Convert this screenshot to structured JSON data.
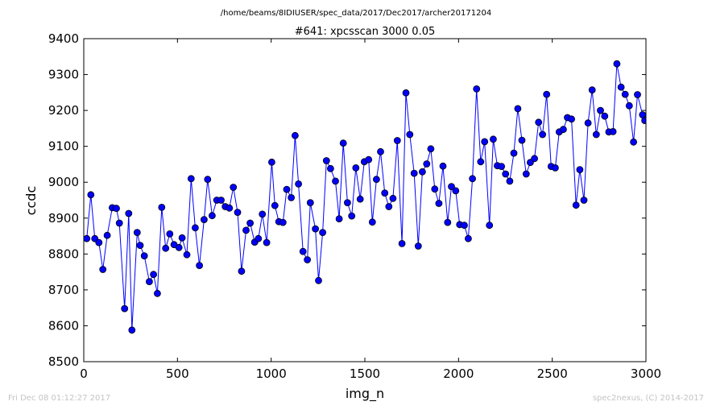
{
  "chart_data": {
    "type": "line",
    "suptitle": "/home/beams/8IDIUSER/spec_data/2017/Dec2017/archer20171204",
    "title": "#641: xpcsscan 3000 0.05",
    "xlabel": "img_n",
    "ylabel": "ccdc",
    "xlim": [
      0,
      3000
    ],
    "ylim": [
      8500,
      9400
    ],
    "xticks": [
      "0",
      "500",
      "1000",
      "1500",
      "2000",
      "2500",
      "3000"
    ],
    "yticks": [
      "8500",
      "8600",
      "8700",
      "8800",
      "8900",
      "9000",
      "9100",
      "9200",
      "9300",
      "9400"
    ],
    "grid": false,
    "series": [
      {
        "color": "#0000ff",
        "marker": "circle",
        "points": [
          [
            16,
            8843
          ],
          [
            38,
            8965
          ],
          [
            59,
            8843
          ],
          [
            81,
            8832
          ],
          [
            102,
            8757
          ],
          [
            125,
            8852
          ],
          [
            152,
            8929
          ],
          [
            174,
            8927
          ],
          [
            190,
            8886
          ],
          [
            218,
            8648
          ],
          [
            240,
            8913
          ],
          [
            257,
            8588
          ],
          [
            285,
            8860
          ],
          [
            301,
            8824
          ],
          [
            323,
            8795
          ],
          [
            350,
            8723
          ],
          [
            372,
            8743
          ],
          [
            393,
            8690
          ],
          [
            416,
            8930
          ],
          [
            437,
            8816
          ],
          [
            459,
            8856
          ],
          [
            482,
            8826
          ],
          [
            508,
            8818
          ],
          [
            525,
            8845
          ],
          [
            550,
            8798
          ],
          [
            573,
            9010
          ],
          [
            595,
            8873
          ],
          [
            617,
            8768
          ],
          [
            642,
            8896
          ],
          [
            661,
            9008
          ],
          [
            685,
            8907
          ],
          [
            710,
            8950
          ],
          [
            733,
            8950
          ],
          [
            755,
            8932
          ],
          [
            777,
            8928
          ],
          [
            798,
            8986
          ],
          [
            821,
            8916
          ],
          [
            842,
            8752
          ],
          [
            866,
            8866
          ],
          [
            888,
            8886
          ],
          [
            912,
            8833
          ],
          [
            932,
            8843
          ],
          [
            953,
            8911
          ],
          [
            976,
            8832
          ],
          [
            1003,
            9056
          ],
          [
            1020,
            8935
          ],
          [
            1041,
            8890
          ],
          [
            1063,
            8888
          ],
          [
            1083,
            8980
          ],
          [
            1107,
            8957
          ],
          [
            1128,
            9130
          ],
          [
            1146,
            8995
          ],
          [
            1170,
            8807
          ],
          [
            1193,
            8784
          ],
          [
            1209,
            8943
          ],
          [
            1236,
            8870
          ],
          [
            1253,
            8726
          ],
          [
            1275,
            8860
          ],
          [
            1295,
            9060
          ],
          [
            1317,
            9038
          ],
          [
            1343,
            9003
          ],
          [
            1363,
            8898
          ],
          [
            1385,
            9109
          ],
          [
            1407,
            8943
          ],
          [
            1430,
            8906
          ],
          [
            1452,
            9040
          ],
          [
            1475,
            8953
          ],
          [
            1497,
            9057
          ],
          [
            1520,
            9063
          ],
          [
            1540,
            8889
          ],
          [
            1562,
            9008
          ],
          [
            1584,
            9085
          ],
          [
            1606,
            8970
          ],
          [
            1628,
            8932
          ],
          [
            1650,
            8955
          ],
          [
            1673,
            9116
          ],
          [
            1698,
            8829
          ],
          [
            1719,
            9249
          ],
          [
            1740,
            9133
          ],
          [
            1763,
            9025
          ],
          [
            1785,
            8822
          ],
          [
            1807,
            9029
          ],
          [
            1830,
            9051
          ],
          [
            1852,
            9093
          ],
          [
            1873,
            8981
          ],
          [
            1895,
            8941
          ],
          [
            1917,
            9045
          ],
          [
            1942,
            8888
          ],
          [
            1962,
            8988
          ],
          [
            1985,
            8976
          ],
          [
            2006,
            8882
          ],
          [
            2031,
            8880
          ],
          [
            2052,
            8843
          ],
          [
            2074,
            9010
          ],
          [
            2096,
            9260
          ],
          [
            2118,
            9057
          ],
          [
            2139,
            9113
          ],
          [
            2165,
            8880
          ],
          [
            2185,
            9120
          ],
          [
            2207,
            9046
          ],
          [
            2229,
            9044
          ],
          [
            2251,
            9023
          ],
          [
            2273,
            9003
          ],
          [
            2295,
            9081
          ],
          [
            2316,
            9205
          ],
          [
            2338,
            9117
          ],
          [
            2361,
            9023
          ],
          [
            2383,
            9055
          ],
          [
            2405,
            9066
          ],
          [
            2427,
            9167
          ],
          [
            2448,
            9133
          ],
          [
            2470,
            9245
          ],
          [
            2494,
            9044
          ],
          [
            2516,
            9040
          ],
          [
            2537,
            9140
          ],
          [
            2559,
            9147
          ],
          [
            2581,
            9180
          ],
          [
            2603,
            9176
          ],
          [
            2627,
            8936
          ],
          [
            2647,
            9035
          ],
          [
            2669,
            8950
          ],
          [
            2691,
            9165
          ],
          [
            2713,
            9257
          ],
          [
            2735,
            9133
          ],
          [
            2757,
            9200
          ],
          [
            2780,
            9184
          ],
          [
            2802,
            9140
          ],
          [
            2824,
            9141
          ],
          [
            2845,
            9330
          ],
          [
            2867,
            9265
          ],
          [
            2889,
            9245
          ],
          [
            2911,
            9213
          ],
          [
            2934,
            9112
          ],
          [
            2955,
            9244
          ],
          [
            2982,
            9188
          ],
          [
            2994,
            9172
          ]
        ]
      }
    ]
  },
  "footer": {
    "timestamp": "Fri Dec 08 01:12:27 2017",
    "credit": "spec2nexus, (C) 2014-2017"
  }
}
